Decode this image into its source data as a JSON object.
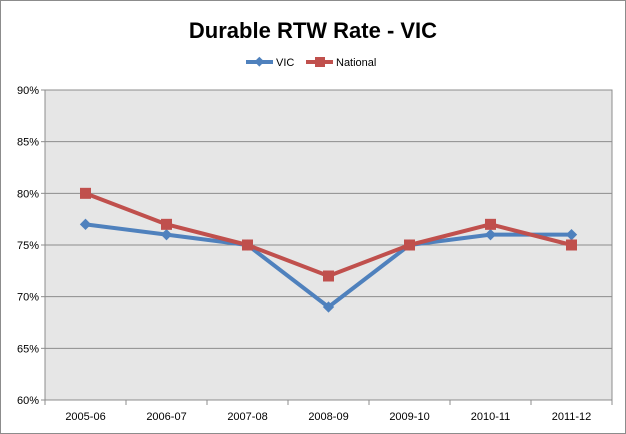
{
  "chart_data": {
    "type": "line",
    "title": "Durable RTW Rate - VIC",
    "xlabel": "",
    "ylabel": "",
    "categories": [
      "2005-06",
      "2006-07",
      "2007-08",
      "2008-09",
      "2009-10",
      "2010-11",
      "2011-12"
    ],
    "series": [
      {
        "name": "VIC",
        "values": [
          77,
          76,
          75,
          69,
          75,
          76,
          76
        ],
        "color": "#4f81bd",
        "marker": "diamond"
      },
      {
        "name": "National",
        "values": [
          80,
          77,
          75,
          72,
          75,
          77,
          75
        ],
        "color": "#c0504d",
        "marker": "square"
      }
    ],
    "ylim": [
      60,
      90
    ],
    "yticks": [
      "60%",
      "65%",
      "70%",
      "75%",
      "80%",
      "85%",
      "90%"
    ],
    "ytick_values": [
      60,
      65,
      70,
      75,
      80,
      85,
      90
    ],
    "grid": true,
    "legend_position": "top",
    "plot_background": "#e6e6e6",
    "grid_color": "#8c8c8c"
  }
}
